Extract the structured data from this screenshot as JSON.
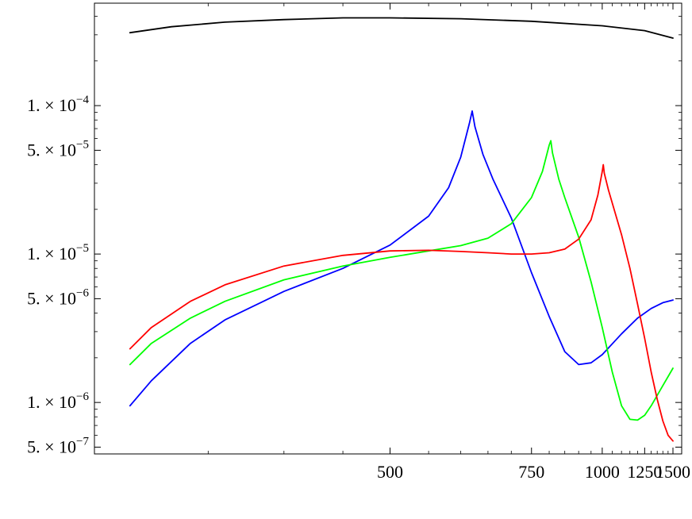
{
  "chart_data": {
    "type": "line",
    "title": "",
    "xlabel": "",
    "ylabel": "",
    "x_scale": "reciprocal",
    "y_scale": "log",
    "xlim": [
      300,
      1500
    ],
    "ylim": [
      4.5e-07,
      0.00049
    ],
    "grid": false,
    "legend": "none",
    "x_ticks": [
      {
        "value": 500,
        "label": "500"
      },
      {
        "value": 750,
        "label": "750"
      },
      {
        "value": 1000,
        "label": "1000"
      },
      {
        "value": 1250,
        "label": "1250"
      },
      {
        "value": 1500,
        "label": "1500"
      }
    ],
    "y_ticks": [
      {
        "value": 0.0001,
        "mant": "1.",
        "times": "×",
        "base": "10",
        "exp": "−4"
      },
      {
        "value": 5e-05,
        "mant": "5.",
        "times": "×",
        "base": "10",
        "exp": "−5"
      },
      {
        "value": 1e-05,
        "mant": "1.",
        "times": "×",
        "base": "10",
        "exp": "−5"
      },
      {
        "value": 5e-06,
        "mant": "5.",
        "times": "×",
        "base": "10",
        "exp": "−6"
      },
      {
        "value": 1e-06,
        "mant": "1.",
        "times": "×",
        "base": "10",
        "exp": "−6"
      },
      {
        "value": 5e-07,
        "mant": "5.",
        "times": "×",
        "base": "10",
        "exp": "−7"
      }
    ],
    "series": [
      {
        "color": "#000000",
        "x": [
          310,
          330,
          360,
          400,
          450,
          500,
          600,
          750,
          1000,
          1250,
          1500
        ],
        "y": [
          0.00031,
          0.00034,
          0.000365,
          0.00038,
          0.00039,
          0.00039,
          0.000385,
          0.00037,
          0.000345,
          0.00032,
          0.000285
        ]
      },
      {
        "color": "#0000ff",
        "x": [
          310,
          320,
          340,
          360,
          400,
          450,
          500,
          550,
          580,
          600,
          615,
          620,
          625,
          640,
          660,
          700,
          750,
          800,
          850,
          900,
          950,
          1000,
          1100,
          1200,
          1300,
          1400,
          1500
        ],
        "y": [
          9.5e-07,
          1.4e-06,
          2.5e-06,
          3.6e-06,
          5.6e-06,
          8e-06,
          1.15e-05,
          1.8e-05,
          2.8e-05,
          4.5e-05,
          7.6e-05,
          9.2e-05,
          7.2e-05,
          4.7e-05,
          3.2e-05,
          1.75e-05,
          7.5e-06,
          3.8e-06,
          2.2e-06,
          1.8e-06,
          1.85e-06,
          2.1e-06,
          2.9e-06,
          3.7e-06,
          4.3e-06,
          4.7e-06,
          4.9e-06
        ]
      },
      {
        "color": "#00ff00",
        "x": [
          310,
          320,
          340,
          360,
          400,
          450,
          500,
          550,
          600,
          650,
          700,
          750,
          780,
          800,
          805,
          810,
          830,
          850,
          900,
          950,
          1000,
          1050,
          1100,
          1150,
          1200,
          1250,
          1300,
          1400,
          1500
        ],
        "y": [
          1.8e-06,
          2.5e-06,
          3.7e-06,
          4.8e-06,
          6.7e-06,
          8.3e-06,
          9.5e-06,
          1.05e-05,
          1.14e-05,
          1.28e-05,
          1.6e-05,
          2.4e-05,
          3.6e-05,
          5.4e-05,
          5.8e-05,
          4.8e-05,
          3.2e-05,
          2.4e-05,
          1.3e-05,
          6.5e-06,
          3.2e-06,
          1.6e-06,
          9.5e-07,
          7.7e-07,
          7.6e-07,
          8.2e-07,
          9.5e-07,
          1.3e-06,
          1.7e-06
        ]
      },
      {
        "color": "#ff0000",
        "x": [
          310,
          320,
          340,
          360,
          400,
          450,
          500,
          550,
          600,
          650,
          700,
          750,
          800,
          850,
          900,
          950,
          980,
          1000,
          1005,
          1010,
          1030,
          1050,
          1100,
          1150,
          1200,
          1250,
          1300,
          1350,
          1400,
          1450,
          1500
        ],
        "y": [
          2.3e-06,
          3.2e-06,
          4.8e-06,
          6.2e-06,
          8.3e-06,
          9.8e-06,
          1.05e-05,
          1.06e-05,
          1.04e-05,
          1.02e-05,
          1e-05,
          1e-05,
          1.02e-05,
          1.08e-05,
          1.26e-05,
          1.7e-05,
          2.5e-05,
          3.6e-05,
          4e-05,
          3.5e-05,
          2.7e-05,
          2.2e-05,
          1.35e-05,
          8e-06,
          4.6e-06,
          2.7e-06,
          1.6e-06,
          1.05e-06,
          7.5e-07,
          6e-07,
          5.5e-07
        ]
      }
    ]
  }
}
